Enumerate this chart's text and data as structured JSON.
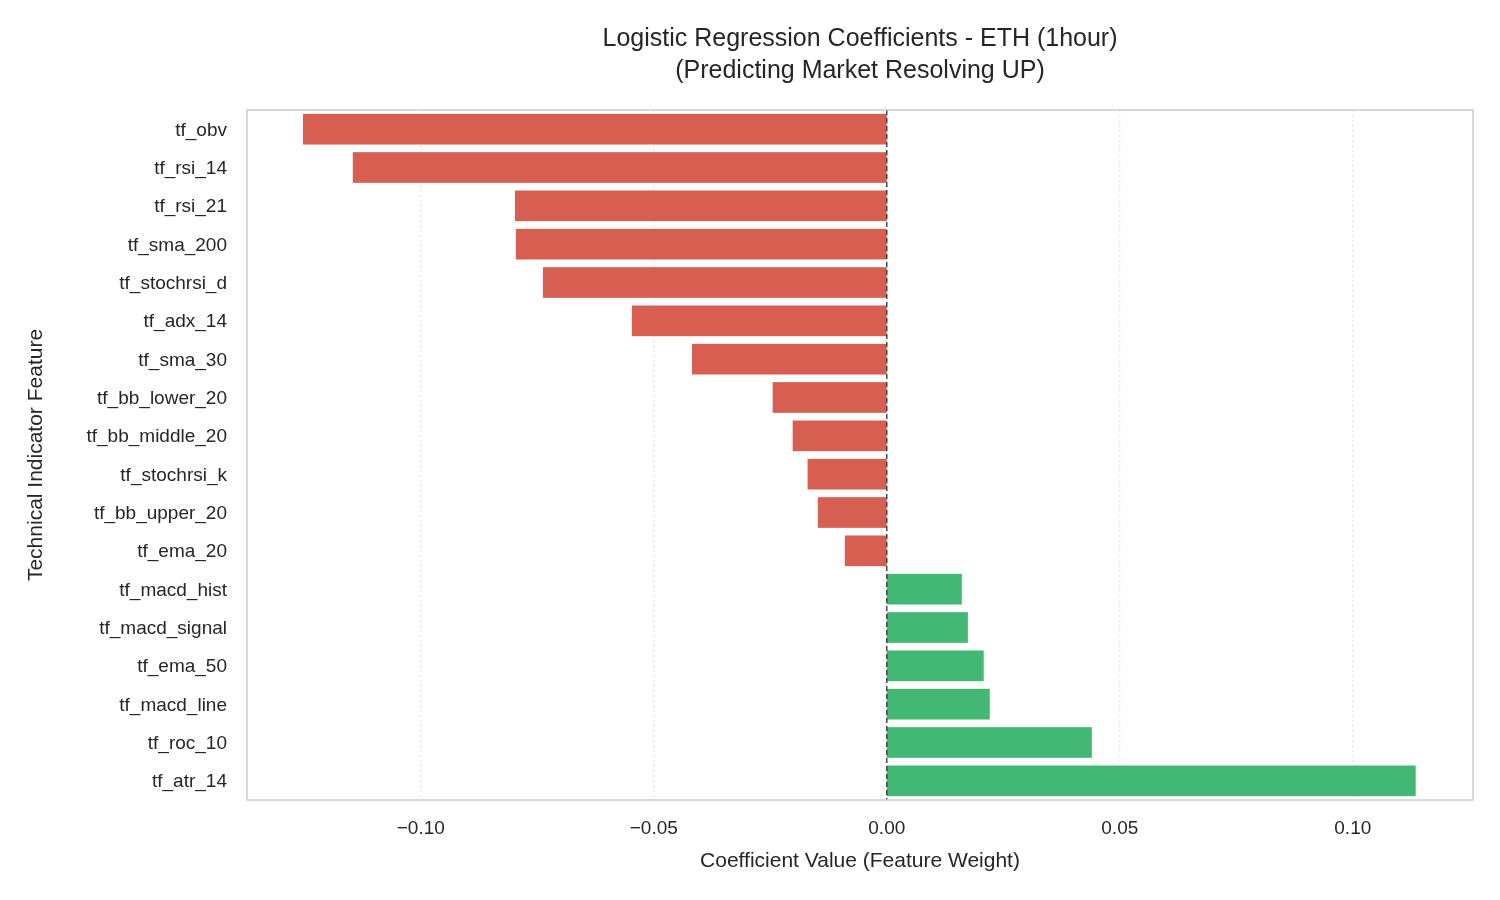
{
  "chart_data": {
    "type": "bar",
    "orientation": "horizontal",
    "title": "Logistic Regression Coefficients - ETH (1hour)",
    "subtitle": "(Predicting Market Resolving UP)",
    "xlabel": "Coefficient Value (Feature Weight)",
    "ylabel": "Technical Indicator Feature",
    "categories": [
      "tf_obv",
      "tf_rsi_14",
      "tf_rsi_21",
      "tf_sma_200",
      "tf_stochrsi_d",
      "tf_adx_14",
      "tf_sma_30",
      "tf_bb_lower_20",
      "tf_bb_middle_20",
      "tf_stochrsi_k",
      "tf_bb_upper_20",
      "tf_ema_20",
      "tf_macd_hist",
      "tf_macd_signal",
      "tf_ema_50",
      "tf_macd_line",
      "tf_roc_10",
      "tf_atr_14"
    ],
    "values": [
      -0.1253,
      -0.1146,
      -0.0798,
      -0.0796,
      -0.0738,
      -0.0547,
      -0.0418,
      -0.0245,
      -0.0202,
      -0.017,
      -0.0148,
      -0.009,
      0.0161,
      0.0174,
      0.0208,
      0.0221,
      0.044,
      0.1135
    ],
    "colors": [
      "#d65f51",
      "#d65f51",
      "#d65f51",
      "#d65f51",
      "#d65f51",
      "#d65f51",
      "#d65f51",
      "#d65f51",
      "#d65f51",
      "#d65f51",
      "#d65f51",
      "#d65f51",
      "#43b874",
      "#43b874",
      "#43b874",
      "#43b874",
      "#43b874",
      "#43b874"
    ],
    "xlim": [
      -0.1373,
      0.1258
    ],
    "xticks": [
      {
        "value": -0.1,
        "label": "−0.10"
      },
      {
        "value": -0.05,
        "label": "−0.05"
      },
      {
        "value": 0,
        "label": "0.00"
      },
      {
        "value": 0.05,
        "label": "0.05"
      },
      {
        "value": 0.1,
        "label": "0.10"
      }
    ],
    "ref_lines": [
      {
        "axis": "x",
        "value": 0,
        "color": "#333333",
        "line_style": "dashed"
      }
    ],
    "grid": "x"
  }
}
